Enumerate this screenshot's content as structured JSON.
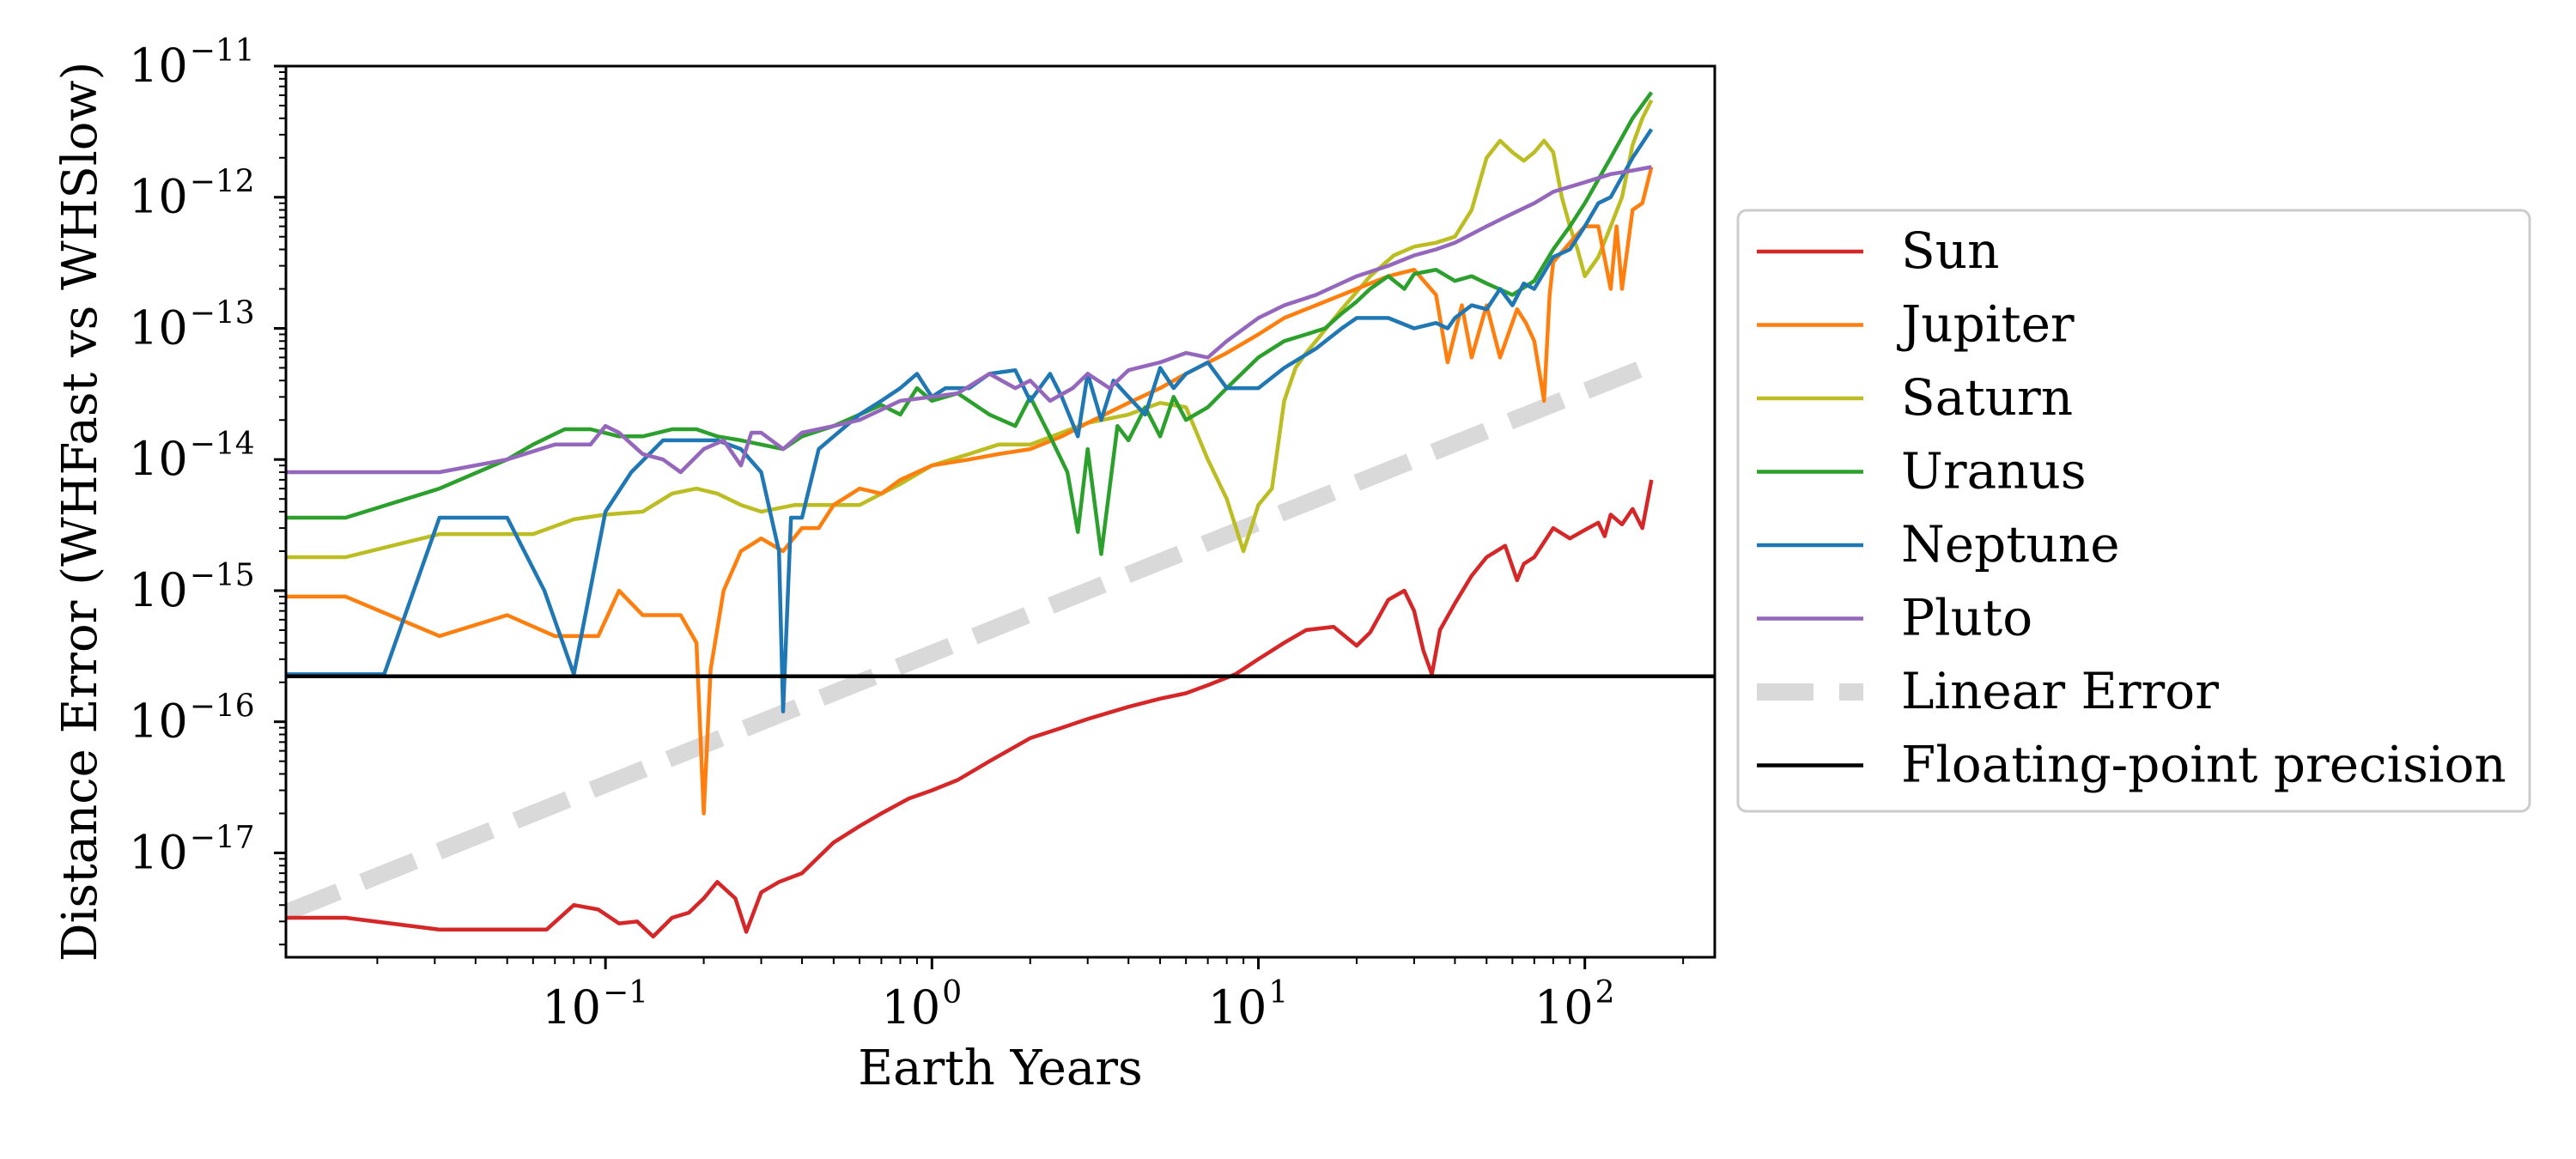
{
  "chart_data": {
    "type": "line",
    "title": "",
    "xlabel": "Earth Years",
    "ylabel": "Distance Error (WHFast vs WHSlow)",
    "xscale": "log",
    "yscale": "log",
    "xlim": [
      0.0105,
      250
    ],
    "ylim": [
      1.6e-18,
      1e-11
    ],
    "x_ticks": [
      {
        "value": 0.1,
        "base": "10",
        "exp": "−1"
      },
      {
        "value": 1,
        "base": "10",
        "exp": "0"
      },
      {
        "value": 10,
        "base": "10",
        "exp": "1"
      },
      {
        "value": 100,
        "base": "10",
        "exp": "2"
      }
    ],
    "y_ticks": [
      {
        "value": 1e-17,
        "base": "10",
        "exp": "−17"
      },
      {
        "value": 1e-16,
        "base": "10",
        "exp": "−16"
      },
      {
        "value": 1e-15,
        "base": "10",
        "exp": "−15"
      },
      {
        "value": 1e-14,
        "base": "10",
        "exp": "−14"
      },
      {
        "value": 1e-13,
        "base": "10",
        "exp": "−13"
      },
      {
        "value": 1e-12,
        "base": "10",
        "exp": "−12"
      },
      {
        "value": 1e-11,
        "base": "10",
        "exp": "−11"
      }
    ],
    "grid": false,
    "legend_position": "right-outside",
    "series": [
      {
        "name": "Sun",
        "color": "#d62728",
        "style": "solid",
        "x": [
          0.0105,
          0.016,
          0.031,
          0.066,
          0.08,
          0.095,
          0.11,
          0.125,
          0.14,
          0.16,
          0.18,
          0.2,
          0.22,
          0.25,
          0.27,
          0.3,
          0.34,
          0.4,
          0.5,
          0.6,
          0.7,
          0.85,
          1.0,
          1.2,
          1.5,
          2.0,
          2.5,
          3.0,
          4.0,
          5.0,
          6.0,
          7.0,
          8.5,
          10,
          12,
          14,
          17,
          20,
          22,
          25,
          28,
          30,
          32,
          34,
          36,
          40,
          45,
          50,
          57,
          62,
          65,
          70,
          80,
          90,
          100,
          110,
          115,
          120,
          130,
          140,
          150,
          160
        ],
        "y": [
          3.2e-18,
          3.2e-18,
          2.6e-18,
          2.6e-18,
          4e-18,
          3.7e-18,
          2.9e-18,
          3e-18,
          2.3e-18,
          3.2e-18,
          3.5e-18,
          4.5e-18,
          6e-18,
          4.5e-18,
          2.5e-18,
          5e-18,
          6e-18,
          7e-18,
          1.2e-17,
          1.6e-17,
          2e-17,
          2.6e-17,
          3e-17,
          3.6e-17,
          5e-17,
          7.5e-17,
          9e-17,
          1.05e-16,
          1.3e-16,
          1.5e-16,
          1.65e-16,
          1.9e-16,
          2.3e-16,
          3e-16,
          4e-16,
          5e-16,
          5.3e-16,
          3.8e-16,
          4.8e-16,
          8.5e-16,
          1e-15,
          7e-16,
          3.5e-16,
          2.3e-16,
          5e-16,
          8e-16,
          1.3e-15,
          1.8e-15,
          2.2e-15,
          1.2e-15,
          1.6e-15,
          1.8e-15,
          3e-15,
          2.5e-15,
          2.9e-15,
          3.3e-15,
          2.6e-15,
          3.8e-15,
          3.2e-15,
          4.2e-15,
          3e-15,
          7e-15
        ]
      },
      {
        "name": "Jupiter",
        "color": "#ff7f0e",
        "style": "solid",
        "x": [
          0.0105,
          0.016,
          0.031,
          0.05,
          0.07,
          0.095,
          0.11,
          0.13,
          0.17,
          0.19,
          0.2,
          0.21,
          0.23,
          0.26,
          0.3,
          0.35,
          0.4,
          0.45,
          0.5,
          0.6,
          0.7,
          0.8,
          1.0,
          1.3,
          1.6,
          2.0,
          2.5,
          3.0,
          4.0,
          5.0,
          6.0,
          8.0,
          10,
          12,
          15,
          20,
          25,
          30,
          35,
          38,
          42,
          45,
          50,
          55,
          62,
          66,
          70,
          75,
          78,
          80,
          90,
          100,
          110,
          120,
          125,
          130,
          140,
          150,
          160
        ],
        "y": [
          9e-16,
          9e-16,
          4.5e-16,
          6.5e-16,
          4.5e-16,
          4.5e-16,
          1e-15,
          6.5e-16,
          6.5e-16,
          4e-16,
          2e-17,
          2.5e-16,
          1e-15,
          2e-15,
          2.5e-15,
          2e-15,
          3e-15,
          3e-15,
          4.5e-15,
          6e-15,
          5.5e-15,
          7e-15,
          9e-15,
          1e-14,
          1.1e-14,
          1.2e-14,
          1.5e-14,
          1.9e-14,
          2.7e-14,
          3.5e-14,
          4.5e-14,
          6.5e-14,
          9e-14,
          1.2e-13,
          1.5e-13,
          2e-13,
          2.5e-13,
          2.8e-13,
          1.8e-13,
          5.5e-14,
          1.5e-13,
          6e-14,
          1.5e-13,
          6e-14,
          1.4e-13,
          1.1e-13,
          8e-14,
          2.8e-14,
          1.8e-13,
          3.2e-13,
          4.5e-13,
          6e-13,
          6e-13,
          2e-13,
          6e-13,
          2e-13,
          8e-13,
          9e-13,
          1.7e-12
        ]
      },
      {
        "name": "Saturn",
        "color": "#bcbd22",
        "style": "solid",
        "x": [
          0.0105,
          0.016,
          0.031,
          0.06,
          0.08,
          0.1,
          0.13,
          0.16,
          0.19,
          0.22,
          0.26,
          0.3,
          0.38,
          0.5,
          0.6,
          0.8,
          1.0,
          1.3,
          1.6,
          2.0,
          2.5,
          3.0,
          4.0,
          5.0,
          6.0,
          7.0,
          8.0,
          9.0,
          9.5,
          10,
          11,
          12,
          13,
          14,
          15,
          18,
          22,
          26,
          30,
          35,
          40,
          45,
          50,
          55,
          60,
          65,
          70,
          75,
          80,
          85,
          90,
          95,
          100,
          110,
          120,
          130,
          140,
          150,
          160
        ],
        "y": [
          1.8e-15,
          1.8e-15,
          2.7e-15,
          2.7e-15,
          3.5e-15,
          3.8e-15,
          4e-15,
          5.5e-15,
          6e-15,
          5.5e-15,
          4.5e-15,
          4e-15,
          4.5e-15,
          4.5e-15,
          4.5e-15,
          6.5e-15,
          9e-15,
          1.1e-14,
          1.3e-14,
          1.3e-14,
          1.6e-14,
          1.9e-14,
          2.2e-14,
          2.7e-14,
          2.5e-14,
          1e-14,
          5e-15,
          2e-15,
          3e-15,
          4.5e-15,
          6e-15,
          2.8e-14,
          5e-14,
          6.5e-14,
          8e-14,
          1.4e-13,
          2.5e-13,
          3.6e-13,
          4.2e-13,
          4.5e-13,
          5e-13,
          8e-13,
          2e-12,
          2.7e-12,
          2.2e-12,
          1.9e-12,
          2.2e-12,
          2.7e-12,
          2.2e-12,
          1e-12,
          6e-13,
          4e-13,
          2.5e-13,
          3.5e-13,
          6e-13,
          1e-12,
          2.5e-12,
          4e-12,
          5.5e-12
        ]
      },
      {
        "name": "Uranus",
        "color": "#2ca02c",
        "style": "solid",
        "x": [
          0.0105,
          0.016,
          0.031,
          0.05,
          0.06,
          0.075,
          0.09,
          0.11,
          0.13,
          0.16,
          0.19,
          0.22,
          0.26,
          0.3,
          0.35,
          0.4,
          0.5,
          0.6,
          0.7,
          0.8,
          0.9,
          1.0,
          1.2,
          1.5,
          1.8,
          2.0,
          2.3,
          2.6,
          2.8,
          3.0,
          3.3,
          3.7,
          4.0,
          4.5,
          5.0,
          5.5,
          6.0,
          7.0,
          8.0,
          10,
          12,
          14,
          16,
          18,
          20,
          22,
          25,
          28,
          30,
          35,
          40,
          45,
          50,
          60,
          70,
          80,
          90,
          100,
          120,
          140,
          160
        ],
        "y": [
          3.6e-15,
          3.6e-15,
          6e-15,
          1e-14,
          1.3e-14,
          1.7e-14,
          1.7e-14,
          1.5e-14,
          1.5e-14,
          1.7e-14,
          1.7e-14,
          1.5e-14,
          1.4e-14,
          1.3e-14,
          1.2e-14,
          1.5e-14,
          1.8e-14,
          2.2e-14,
          2.6e-14,
          2.2e-14,
          3.5e-14,
          2.8e-14,
          3.2e-14,
          2.2e-14,
          1.8e-14,
          3e-14,
          1.5e-14,
          8e-15,
          2.8e-15,
          1.2e-14,
          1.9e-15,
          1.8e-14,
          1.4e-14,
          2.5e-14,
          1.5e-14,
          3e-14,
          2e-14,
          2.5e-14,
          3.5e-14,
          6e-14,
          8e-14,
          9e-14,
          1e-13,
          1.3e-13,
          1.6e-13,
          2e-13,
          2.5e-13,
          2e-13,
          2.6e-13,
          2.8e-13,
          2.3e-13,
          2.5e-13,
          2.2e-13,
          1.8e-13,
          2.3e-13,
          4e-13,
          6e-13,
          9e-13,
          2e-12,
          4e-12,
          6.3e-12
        ]
      },
      {
        "name": "Neptune",
        "color": "#1f77b4",
        "style": "solid",
        "x": [
          0.0105,
          0.016,
          0.021,
          0.031,
          0.05,
          0.065,
          0.08,
          0.1,
          0.12,
          0.15,
          0.19,
          0.22,
          0.26,
          0.3,
          0.34,
          0.35,
          0.37,
          0.4,
          0.45,
          0.5,
          0.6,
          0.7,
          0.8,
          0.9,
          1.0,
          1.1,
          1.3,
          1.5,
          1.8,
          2.0,
          2.3,
          2.5,
          2.8,
          3.0,
          3.3,
          3.6,
          4.0,
          4.5,
          5.0,
          5.5,
          6.0,
          7.0,
          8.0,
          10,
          12,
          15,
          18,
          20,
          25,
          30,
          35,
          38,
          40,
          45,
          50,
          55,
          60,
          65,
          70,
          80,
          90,
          100,
          110,
          120,
          140,
          160
        ],
        "y": [
          2.3e-16,
          2.3e-16,
          2.3e-16,
          3.6e-15,
          3.6e-15,
          1e-15,
          2.3e-16,
          4e-15,
          8e-15,
          1.4e-14,
          1.4e-14,
          1.4e-14,
          1.2e-14,
          8e-15,
          2e-15,
          1.2e-16,
          3.6e-15,
          3.6e-15,
          1.2e-14,
          1.5e-14,
          2.2e-14,
          2.8e-14,
          3.5e-14,
          4.5e-14,
          3e-14,
          3.5e-14,
          3.5e-14,
          4.5e-14,
          4.8e-14,
          2.8e-14,
          4.5e-14,
          3e-14,
          1.5e-14,
          4.5e-14,
          2e-14,
          4e-14,
          3e-14,
          2.2e-14,
          5e-14,
          3.5e-14,
          4.5e-14,
          5.5e-14,
          3.5e-14,
          3.5e-14,
          5e-14,
          7e-14,
          1e-13,
          1.2e-13,
          1.2e-13,
          1e-13,
          1.1e-13,
          1e-13,
          1.2e-13,
          1.5e-13,
          1.4e-13,
          2e-13,
          1.5e-13,
          2.2e-13,
          2e-13,
          3.5e-13,
          4e-13,
          6e-13,
          9e-13,
          1e-12,
          2e-12,
          3.3e-12
        ]
      },
      {
        "name": "Pluto",
        "color": "#9467bd",
        "style": "solid",
        "x": [
          0.0105,
          0.016,
          0.031,
          0.05,
          0.07,
          0.09,
          0.1,
          0.11,
          0.13,
          0.15,
          0.17,
          0.2,
          0.23,
          0.26,
          0.28,
          0.3,
          0.35,
          0.4,
          0.5,
          0.6,
          0.8,
          1.0,
          1.2,
          1.5,
          1.8,
          2.0,
          2.3,
          2.7,
          3.0,
          3.5,
          4.0,
          5.0,
          6.0,
          7.0,
          8.0,
          10,
          12,
          15,
          20,
          25,
          30,
          35,
          40,
          50,
          60,
          70,
          80,
          100,
          120,
          140,
          160
        ],
        "y": [
          8e-15,
          8e-15,
          8e-15,
          1e-14,
          1.3e-14,
          1.3e-14,
          1.8e-14,
          1.6e-14,
          1.1e-14,
          1e-14,
          8e-15,
          1.2e-14,
          1.4e-14,
          9e-15,
          1.6e-14,
          1.6e-14,
          1.2e-14,
          1.6e-14,
          1.8e-14,
          2e-14,
          2.8e-14,
          3e-14,
          3.2e-14,
          4.5e-14,
          3.5e-14,
          4e-14,
          2.8e-14,
          3.5e-14,
          4.5e-14,
          3.5e-14,
          4.8e-14,
          5.5e-14,
          6.5e-14,
          6e-14,
          8e-14,
          1.2e-13,
          1.5e-13,
          1.8e-13,
          2.5e-13,
          3e-13,
          3.6e-13,
          4e-13,
          4.5e-13,
          6e-13,
          7.5e-13,
          9e-13,
          1.1e-12,
          1.3e-12,
          1.5e-12,
          1.6e-12,
          1.7e-12
        ]
      },
      {
        "name": "Linear Error",
        "color": "#d9d9d9",
        "style": "dashed",
        "x": [
          0.0105,
          160
        ],
        "y": [
          3.5e-18,
          5.3e-14
        ]
      },
      {
        "name": "Floating-point precision",
        "color": "#000000",
        "style": "hline",
        "x": [
          0.0105,
          250
        ],
        "y": [
          2.22e-16,
          2.22e-16
        ]
      }
    ]
  }
}
